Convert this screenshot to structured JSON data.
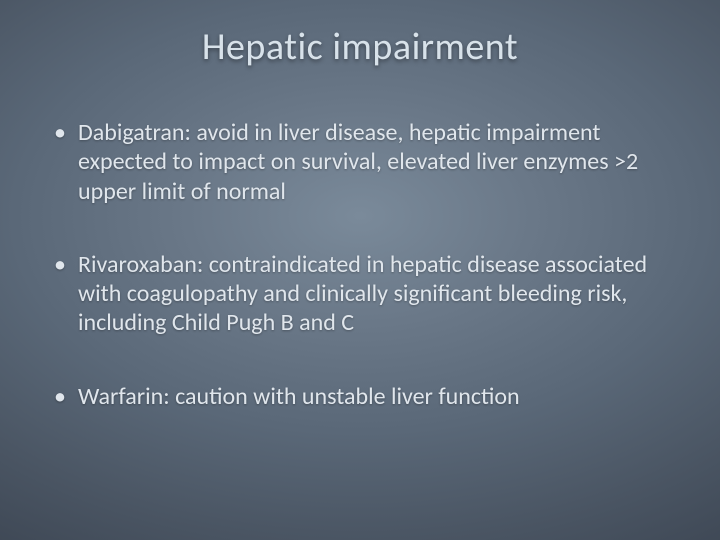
{
  "title": "Hepatic impairment",
  "bullets": [
    "Dabigatran: avoid in liver disease, hepatic impairment expected to impact on survival, elevated liver enzymes >2 upper limit of normal",
    "Rivaroxaban: contraindicated in hepatic disease associated with coagulopathy and clinically significant bleeding risk, including Child Pugh B and C",
    "Warfarin: caution with unstable liver function"
  ],
  "style": {
    "background_gradient_center": "#7a8a9a",
    "background_gradient_edge": "#2a323d",
    "text_color": "#e0e6ec",
    "title_color": "#d8e2ea",
    "title_fontsize": 38,
    "body_fontsize": 24,
    "font_family": "Calibri"
  }
}
